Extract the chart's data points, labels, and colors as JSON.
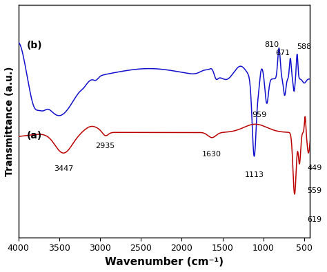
{
  "xlabel": "Wavenumber (cm⁻¹)",
  "ylabel": "Transmittance (a.u.)",
  "xlim": [
    4000,
    430
  ],
  "background_color": "#ffffff",
  "blue_color": "#1010cc",
  "red_color": "#bb0000",
  "label_a": "(a)",
  "label_b": "(b)"
}
